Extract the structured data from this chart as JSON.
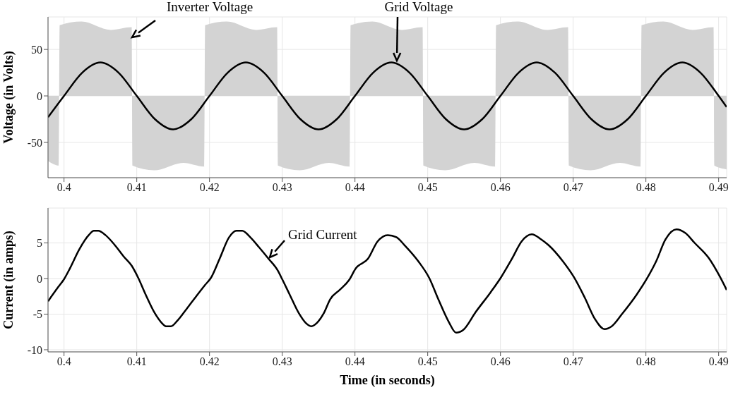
{
  "chart_data": [
    {
      "type": "line",
      "ylabel": "Voltage (in Volts)",
      "xlim": [
        0.3978,
        0.4911
      ],
      "xticks": [
        0.4,
        0.41,
        0.42,
        0.43,
        0.44,
        0.45,
        0.46,
        0.47,
        0.48,
        0.49
      ],
      "ylim": [
        -88,
        85
      ],
      "yticks": [
        -50,
        0,
        50
      ],
      "grid": true,
      "series": [
        {
          "type": "area",
          "color": "#d3d3d3",
          "x": [
            0.3978,
            0.3993,
            0.3994,
            0.4024,
            0.4064,
            0.4093,
            0.4094,
            0.4124,
            0.4164,
            0.4193,
            0.4194,
            0.4224,
            0.4264,
            0.4293,
            0.4294,
            0.4324,
            0.4364,
            0.4393,
            0.4394,
            0.4424,
            0.4464,
            0.4493,
            0.4494,
            0.4524,
            0.4564,
            0.4593,
            0.4594,
            0.4624,
            0.4664,
            0.4693,
            0.4694,
            0.4724,
            0.4764,
            0.4793,
            0.4794,
            0.4824,
            0.4864,
            0.4893,
            0.4894,
            0.4911
          ],
          "values": [
            -70,
            -75,
            76,
            80,
            71,
            74,
            -75,
            -80,
            -72,
            -76,
            76,
            80,
            71,
            74,
            -75,
            -80,
            -72,
            -76,
            76,
            80,
            71,
            74,
            -75,
            -80,
            -72,
            -76,
            76,
            80,
            71,
            74,
            -75,
            -80,
            -72,
            -76,
            76,
            80,
            71,
            74,
            -75,
            -79
          ]
        },
        {
          "type": "line",
          "color": "#000000",
          "x": [
            0.3978,
            0.4,
            0.4025,
            0.405,
            0.4075,
            0.41,
            0.4125,
            0.415,
            0.4175,
            0.42,
            0.4225,
            0.425,
            0.4275,
            0.43,
            0.4325,
            0.435,
            0.4375,
            0.44,
            0.4425,
            0.445,
            0.4475,
            0.45,
            0.4525,
            0.455,
            0.4575,
            0.46,
            0.4625,
            0.465,
            0.4675,
            0.47,
            0.4725,
            0.475,
            0.4775,
            0.48,
            0.4825,
            0.485,
            0.4875,
            0.49,
            0.4911
          ],
          "values": [
            -23,
            0,
            25,
            36,
            25,
            0,
            -25,
            -36,
            -25,
            0,
            25,
            36,
            25,
            0,
            -25,
            -36,
            -25,
            0,
            25,
            36,
            25,
            0,
            -25,
            -36,
            -25,
            0,
            25,
            36,
            25,
            0,
            -25,
            -36,
            -25,
            0,
            25,
            36,
            25,
            0,
            -12
          ]
        }
      ],
      "annotations": [
        "Inverter Voltage",
        "Grid Voltage"
      ]
    },
    {
      "type": "line",
      "xlabel": "Time (in seconds)",
      "ylabel": "Current (in amps)",
      "xlim": [
        0.3978,
        0.4911
      ],
      "xticks": [
        0.4,
        0.41,
        0.42,
        0.43,
        0.44,
        0.45,
        0.46,
        0.47,
        0.48,
        0.49
      ],
      "ylim": [
        -10.3,
        9.9
      ],
      "yticks": [
        -10,
        -5,
        0,
        5
      ],
      "grid": true,
      "series": [
        {
          "color": "#000000",
          "x": [
            0.3978,
            0.3992,
            0.4,
            0.4008,
            0.4021,
            0.4034,
            0.4041,
            0.4047,
            0.4057,
            0.4069,
            0.4082,
            0.4093,
            0.4102,
            0.4112,
            0.4125,
            0.4134,
            0.414,
            0.4147,
            0.4156,
            0.4169,
            0.4181,
            0.4194,
            0.4202,
            0.4214,
            0.4227,
            0.4237,
            0.4245,
            0.4256,
            0.4268,
            0.4281,
            0.4294,
            0.43,
            0.431,
            0.4323,
            0.4332,
            0.434,
            0.4348,
            0.4357,
            0.4366,
            0.4379,
            0.4392,
            0.4401,
            0.4418,
            0.4431,
            0.4445,
            0.4457,
            0.4468,
            0.4488,
            0.4502,
            0.4515,
            0.4529,
            0.4539,
            0.4549,
            0.4566,
            0.4586,
            0.4601,
            0.4616,
            0.4629,
            0.4643,
            0.4656,
            0.4666,
            0.4686,
            0.4701,
            0.4716,
            0.473,
            0.4743,
            0.4753,
            0.4767,
            0.4787,
            0.4802,
            0.4814,
            0.4827,
            0.4842,
            0.4854,
            0.4867,
            0.4887,
            0.4901,
            0.4911
          ],
          "values": [
            -3.2,
            -1.2,
            -0.1,
            1.4,
            4.1,
            6.1,
            6.7,
            6.7,
            6.1,
            4.8,
            3.1,
            1.8,
            0.1,
            -2.2,
            -4.9,
            -6.2,
            -6.7,
            -6.7,
            -5.9,
            -4.2,
            -2.6,
            -0.9,
            0.1,
            2.8,
            5.8,
            6.7,
            6.7,
            5.8,
            4.4,
            2.8,
            1.1,
            -0.1,
            -2.2,
            -4.9,
            -6.2,
            -6.7,
            -6.2,
            -4.9,
            -2.9,
            -1.6,
            -0.2,
            1.4,
            2.8,
            5.2,
            6.1,
            5.8,
            4.7,
            2.3,
            0.1,
            -3,
            -6.1,
            -7.6,
            -7.2,
            -4.7,
            -2,
            0.2,
            2.8,
            5.2,
            6.2,
            5.5,
            4.7,
            2.4,
            0.2,
            -2.7,
            -5.7,
            -7.1,
            -6.7,
            -5,
            -2.3,
            0.1,
            2.4,
            5.5,
            6.9,
            6.4,
            5,
            2.8,
            0.4,
            -1.6
          ]
        }
      ],
      "annotations": [
        "Grid Current"
      ]
    }
  ]
}
